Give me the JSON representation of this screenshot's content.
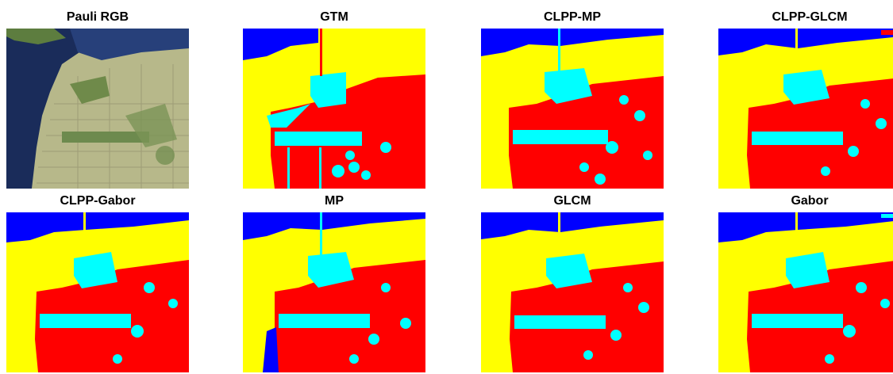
{
  "panels": [
    {
      "title": "Pauli RGB",
      "kind": "pauli",
      "icon": "pauli-rgb-image"
    },
    {
      "title": "GTM",
      "kind": "gtm",
      "icon": "classification-map-image"
    },
    {
      "title": "CLPP-MP",
      "kind": "noisy",
      "icon": "classification-map-image"
    },
    {
      "title": "CLPP-GLCM",
      "kind": "noisy",
      "icon": "classification-map-image"
    },
    {
      "title": "CLPP-Gabor",
      "kind": "noisy",
      "icon": "classification-map-image"
    },
    {
      "title": "MP",
      "kind": "mp",
      "icon": "classification-map-image"
    },
    {
      "title": "GLCM",
      "kind": "noisy",
      "icon": "classification-map-image"
    },
    {
      "title": "Gabor",
      "kind": "noisy",
      "icon": "classification-map-image"
    }
  ],
  "colors": {
    "water": "#0000ff",
    "vegetation": "#ffff00",
    "urban": "#ff0000",
    "developed": "#00ffff",
    "pauli_sea": "#1a2c5a",
    "pauli_land": "#b7b88a",
    "pauli_green": "#5d7d3f"
  }
}
